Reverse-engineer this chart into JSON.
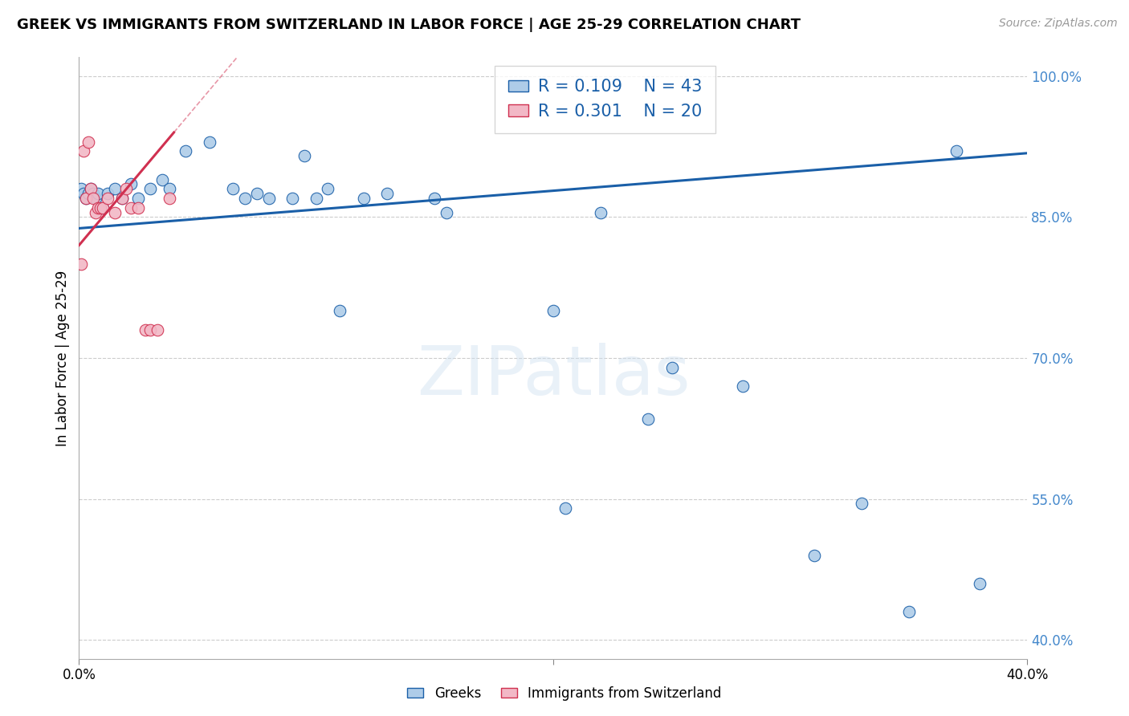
{
  "title": "GREEK VS IMMIGRANTS FROM SWITZERLAND IN LABOR FORCE | AGE 25-29 CORRELATION CHART",
  "source": "Source: ZipAtlas.com",
  "ylabel": "In Labor Force | Age 25-29",
  "xlim": [
    0.0,
    0.4
  ],
  "ylim": [
    0.38,
    1.02
  ],
  "blue_R": 0.109,
  "blue_N": 43,
  "pink_R": 0.301,
  "pink_N": 20,
  "blue_color": "#aecce8",
  "pink_color": "#f2b8c6",
  "blue_line_color": "#1a5fa8",
  "pink_line_color": "#d03050",
  "blue_line_intercept": 0.838,
  "blue_line_slope": 0.2,
  "pink_line_intercept": 0.82,
  "pink_line_slope": 3.0,
  "blue_points_x": [
    0.001,
    0.002,
    0.003,
    0.004,
    0.005,
    0.006,
    0.007,
    0.008,
    0.01,
    0.012,
    0.015,
    0.018,
    0.022,
    0.025,
    0.03,
    0.035,
    0.038,
    0.045,
    0.055,
    0.065,
    0.07,
    0.075,
    0.08,
    0.09,
    0.095,
    0.1,
    0.105,
    0.11,
    0.12,
    0.13,
    0.15,
    0.155,
    0.2,
    0.205,
    0.22,
    0.24,
    0.25,
    0.28,
    0.31,
    0.33,
    0.35,
    0.37,
    0.38
  ],
  "blue_points_y": [
    0.88,
    0.875,
    0.87,
    0.875,
    0.88,
    0.875,
    0.87,
    0.875,
    0.86,
    0.875,
    0.88,
    0.87,
    0.885,
    0.87,
    0.88,
    0.89,
    0.88,
    0.92,
    0.93,
    0.88,
    0.87,
    0.875,
    0.87,
    0.87,
    0.915,
    0.87,
    0.88,
    0.75,
    0.87,
    0.875,
    0.87,
    0.855,
    0.75,
    0.54,
    0.855,
    0.635,
    0.69,
    0.67,
    0.49,
    0.545,
    0.43,
    0.92,
    0.46
  ],
  "pink_points_x": [
    0.001,
    0.002,
    0.003,
    0.004,
    0.005,
    0.006,
    0.007,
    0.008,
    0.009,
    0.01,
    0.012,
    0.015,
    0.018,
    0.02,
    0.022,
    0.025,
    0.028,
    0.03,
    0.033,
    0.038
  ],
  "pink_points_y": [
    0.8,
    0.92,
    0.87,
    0.93,
    0.88,
    0.87,
    0.855,
    0.86,
    0.86,
    0.86,
    0.87,
    0.855,
    0.87,
    0.88,
    0.86,
    0.86,
    0.73,
    0.73,
    0.73,
    0.87
  ]
}
